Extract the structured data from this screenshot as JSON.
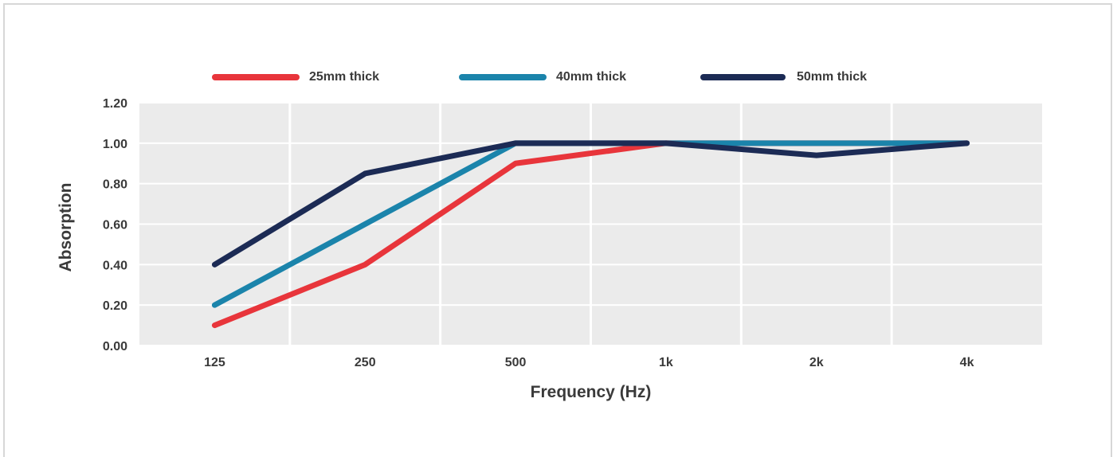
{
  "chart_data": {
    "type": "line",
    "title": "",
    "xlabel": "Frequency (Hz)",
    "ylabel": "Absorption",
    "categories": [
      "125",
      "250",
      "500",
      "1k",
      "2k",
      "4k"
    ],
    "ylim": [
      0,
      1.2
    ],
    "yticks": [
      "0.00",
      "0.20",
      "0.40",
      "0.60",
      "0.80",
      "1.00",
      "1.20"
    ],
    "grid": true,
    "legend_position": "top",
    "series": [
      {
        "name": "25mm thick",
        "color": "#e8353b",
        "values": [
          0.1,
          0.4,
          0.9,
          1.0,
          1.0,
          1.0
        ]
      },
      {
        "name": "40mm thick",
        "color": "#1b84ab",
        "values": [
          0.2,
          0.6,
          1.0,
          1.0,
          1.0,
          1.0
        ]
      },
      {
        "name": "50mm thick",
        "color": "#1c2b55",
        "values": [
          0.4,
          0.85,
          1.0,
          1.0,
          0.94,
          1.0
        ]
      }
    ]
  }
}
